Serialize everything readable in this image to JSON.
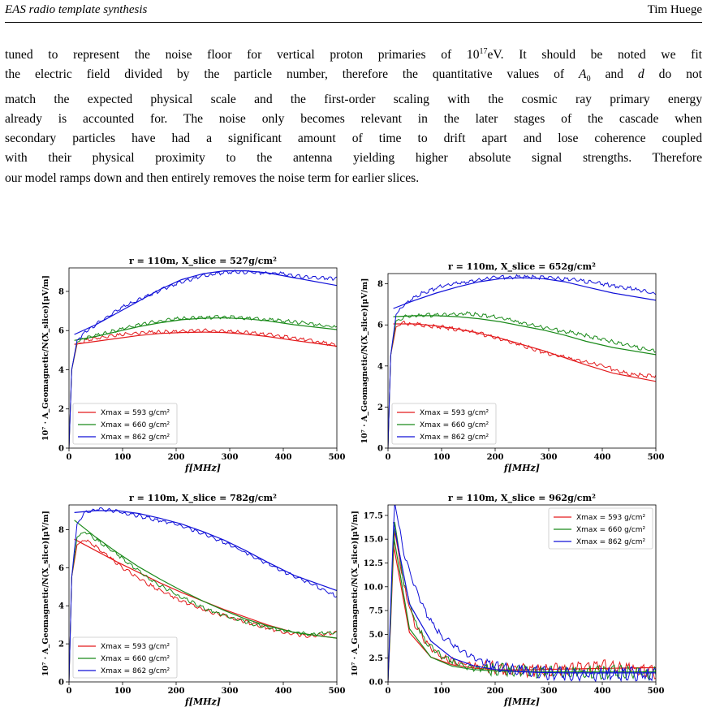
{
  "header": {
    "left": "EAS radio template synthesis",
    "right": "Tim Huege"
  },
  "paragraph": [
    "tuned to represent the noise floor for vertical proton primaries of 10^17eV. It should be noted we fit",
    "the electric field divided by the particle number, therefore the quantitative values of A0 and d do not",
    "match the expected physical scale and the first-order scaling with the cosmic ray primary energy",
    "already is accounted for. The noise only becomes relevant in the later stages of the cascade when",
    "secondary particles have had a significant amount of time to drift apart and lose coherence coupled",
    "with their physical proximity to the antenna yielding higher absolute signal strengths. Therefore",
    "our model ramps down and then entirely removes the noise term for earlier slices."
  ],
  "colors": {
    "red": "#e31a1c",
    "green": "#1a8a1a",
    "blue": "#1010d8"
  },
  "chart_data": [
    {
      "type": "line",
      "title": "r = 110m, X_slice = 527g/cm²",
      "xlabel": "f[MHz]",
      "ylabel": "10⁷ · A_Geomagnetic/N(X_slice)[μV/m]",
      "xlim": [
        0,
        500
      ],
      "ylim": [
        0,
        9.2
      ],
      "xticks": [
        0,
        100,
        200,
        300,
        400,
        500
      ],
      "yticks": [
        0,
        2,
        4,
        6,
        8
      ],
      "legend": "lower-left",
      "series": [
        {
          "name": "Xmax = 593 g/cm²",
          "color": "red",
          "x": [
            0,
            5,
            15,
            30,
            60,
            100,
            150,
            200,
            250,
            300,
            350,
            400,
            450,
            500
          ],
          "y": [
            0,
            4.0,
            5.3,
            5.5,
            5.65,
            5.8,
            5.9,
            5.95,
            6.0,
            5.95,
            5.85,
            5.7,
            5.5,
            5.25
          ],
          "fit": [
            5.3,
            5.45,
            5.6,
            5.75,
            5.85,
            5.9,
            5.92,
            5.9,
            5.82,
            5.7,
            5.5,
            5.2
          ]
        },
        {
          "name": "Xmax = 660 g/cm²",
          "color": "green",
          "x": [
            0,
            5,
            15,
            30,
            60,
            100,
            150,
            200,
            250,
            300,
            350,
            400,
            450,
            500
          ],
          "y": [
            0,
            4.0,
            5.4,
            5.6,
            5.8,
            6.1,
            6.4,
            6.6,
            6.65,
            6.7,
            6.6,
            6.5,
            6.35,
            6.15
          ],
          "fit": [
            5.5,
            5.7,
            5.95,
            6.2,
            6.4,
            6.55,
            6.63,
            6.65,
            6.6,
            6.5,
            6.3,
            6.05
          ]
        },
        {
          "name": "Xmax = 862 g/cm²",
          "color": "blue",
          "x": [
            0,
            5,
            15,
            30,
            60,
            100,
            150,
            200,
            250,
            300,
            350,
            400,
            450,
            500
          ],
          "y": [
            0,
            4.0,
            5.5,
            5.9,
            6.5,
            7.2,
            7.8,
            8.4,
            8.8,
            9.0,
            8.95,
            8.9,
            8.7,
            8.65
          ],
          "fit": [
            5.8,
            6.3,
            6.9,
            7.5,
            8.1,
            8.6,
            8.9,
            9.05,
            9.05,
            8.95,
            8.7,
            8.3
          ]
        }
      ]
    },
    {
      "type": "line",
      "title": "r = 110m, X_slice = 652g/cm²",
      "xlabel": "f[MHz]",
      "ylabel": "10⁷ · A_Geomagnetic/N(X_slice)[μV/m]",
      "xlim": [
        0,
        500
      ],
      "ylim": [
        0,
        8.5
      ],
      "xticks": [
        0,
        100,
        200,
        300,
        400,
        500
      ],
      "yticks": [
        0,
        2,
        4,
        6,
        8
      ],
      "legend": "lower-left",
      "series": [
        {
          "name": "Xmax = 593 g/cm²",
          "color": "red",
          "x": [
            0,
            5,
            15,
            30,
            60,
            100,
            150,
            200,
            250,
            300,
            350,
            400,
            450,
            500
          ],
          "y": [
            0,
            4.5,
            5.9,
            6.1,
            6.0,
            5.9,
            5.7,
            5.4,
            5.0,
            4.6,
            4.3,
            4.0,
            3.6,
            3.5
          ],
          "fit": [
            6.05,
            6.05,
            5.95,
            5.8,
            5.6,
            5.35,
            5.05,
            4.75,
            4.4,
            4.05,
            3.65,
            3.25
          ]
        },
        {
          "name": "Xmax = 660 g/cm²",
          "color": "green",
          "x": [
            0,
            5,
            15,
            30,
            60,
            100,
            150,
            200,
            250,
            300,
            350,
            400,
            450,
            500
          ],
          "y": [
            0,
            4.5,
            6.2,
            6.4,
            6.45,
            6.5,
            6.55,
            6.4,
            6.1,
            5.8,
            5.6,
            5.3,
            5.0,
            4.7
          ],
          "fit": [
            6.4,
            6.45,
            6.45,
            6.4,
            6.3,
            6.15,
            5.95,
            5.75,
            5.5,
            5.2,
            4.9,
            4.55
          ]
        },
        {
          "name": "Xmax = 862 g/cm²",
          "color": "blue",
          "x": [
            0,
            5,
            15,
            30,
            60,
            100,
            150,
            200,
            250,
            300,
            350,
            400,
            450,
            500
          ],
          "y": [
            0,
            4.5,
            6.5,
            7.0,
            7.5,
            7.9,
            8.1,
            8.3,
            8.35,
            8.3,
            8.2,
            8.0,
            7.8,
            7.5
          ],
          "fit": [
            6.8,
            7.2,
            7.55,
            7.85,
            8.1,
            8.25,
            8.3,
            8.25,
            8.1,
            7.85,
            7.55,
            7.2
          ]
        }
      ]
    },
    {
      "type": "line",
      "title": "r = 110m, X_slice = 782g/cm²",
      "xlabel": "f[MHz]",
      "ylabel": "10⁷ · A_Geomagnetic/N(X_slice)[μV/m]",
      "xlim": [
        0,
        500
      ],
      "ylim": [
        0,
        9.3
      ],
      "xticks": [
        0,
        100,
        200,
        300,
        400,
        500
      ],
      "yticks": [
        0,
        2,
        4,
        6,
        8
      ],
      "legend": "lower-left",
      "series": [
        {
          "name": "Xmax = 593 g/cm²",
          "color": "red",
          "x": [
            0,
            5,
            15,
            30,
            60,
            100,
            150,
            200,
            250,
            300,
            350,
            400,
            450,
            500
          ],
          "y": [
            0,
            5.5,
            7.2,
            7.5,
            6.9,
            6.0,
            5.1,
            4.4,
            3.8,
            3.4,
            3.0,
            2.6,
            2.4,
            2.6
          ],
          "fit": [
            7.5,
            6.9,
            6.3,
            5.75,
            5.2,
            4.7,
            4.25,
            3.8,
            3.4,
            3.0,
            2.6,
            2.3
          ]
        },
        {
          "name": "Xmax = 660 g/cm²",
          "color": "green",
          "x": [
            0,
            5,
            15,
            30,
            60,
            100,
            150,
            200,
            250,
            300,
            350,
            400,
            450,
            500
          ],
          "y": [
            0,
            5.5,
            7.6,
            7.9,
            7.3,
            6.5,
            5.4,
            4.6,
            3.9,
            3.4,
            3.0,
            2.7,
            2.5,
            2.6
          ],
          "fit": [
            8.5,
            7.6,
            6.8,
            6.05,
            5.4,
            4.8,
            4.25,
            3.75,
            3.3,
            2.95,
            2.6,
            2.3
          ]
        },
        {
          "name": "Xmax = 862 g/cm²",
          "color": "blue",
          "x": [
            0,
            5,
            15,
            30,
            60,
            100,
            150,
            200,
            250,
            300,
            350,
            400,
            450,
            500
          ],
          "y": [
            0,
            5.5,
            8.3,
            8.9,
            9.1,
            8.9,
            8.6,
            8.3,
            7.8,
            7.2,
            6.5,
            5.8,
            5.2,
            4.5
          ],
          "fit": [
            8.9,
            9.0,
            9.0,
            8.85,
            8.6,
            8.3,
            7.9,
            7.45,
            6.9,
            6.3,
            5.6,
            4.8
          ]
        }
      ]
    },
    {
      "type": "line",
      "title": "r = 110m, X_slice = 962g/cm²",
      "xlabel": "f[MHz]",
      "ylabel": "10⁷ · A_Geomagnetic/N(X_slice)[μV/m]",
      "xlim": [
        0,
        500
      ],
      "ylim": [
        0,
        18.6
      ],
      "xticks": [
        0,
        100,
        200,
        300,
        400,
        500
      ],
      "yticks": [
        0.0,
        2.5,
        5.0,
        7.5,
        10.0,
        12.5,
        15.0,
        17.5
      ],
      "legend": "upper-right",
      "series": [
        {
          "name": "Xmax = 593 g/cm²",
          "color": "red",
          "x": [
            0,
            5,
            12,
            20,
            30,
            50,
            75,
            100,
            150,
            200,
            250,
            300,
            350,
            400,
            450,
            500
          ],
          "y": [
            0,
            6.0,
            16.0,
            13.5,
            10.0,
            6.0,
            3.8,
            2.6,
            1.8,
            1.4,
            1.3,
            1.2,
            1.5,
            1.8,
            1.4,
            1.0
          ],
          "fit": [
            14.5,
            5.2,
            2.6,
            1.8,
            1.45,
            1.3,
            1.25,
            1.3,
            1.35,
            1.4,
            1.45,
            1.5
          ]
        },
        {
          "name": "Xmax = 660 g/cm²",
          "color": "green",
          "x": [
            0,
            5,
            12,
            20,
            30,
            50,
            75,
            100,
            150,
            200,
            250,
            300,
            350,
            400,
            450,
            500
          ],
          "y": [
            0,
            6.5,
            17.0,
            14.0,
            10.5,
            6.3,
            3.9,
            2.7,
            1.5,
            1.3,
            1.2,
            1.1,
            1.0,
            1.0,
            1.1,
            0.9
          ],
          "fit": [
            15.5,
            5.6,
            2.6,
            1.65,
            1.3,
            1.15,
            1.1,
            1.05,
            1.05,
            1.05,
            1.05,
            1.05
          ]
        },
        {
          "name": "Xmax = 862 g/cm²",
          "color": "blue",
          "x": [
            0,
            5,
            12,
            20,
            30,
            50,
            75,
            100,
            150,
            200,
            250,
            300,
            350,
            400,
            450,
            500
          ],
          "y": [
            0,
            8.0,
            19.0,
            16.5,
            13.5,
            10.0,
            6.8,
            4.8,
            2.8,
            1.6,
            1.2,
            0.9,
            0.8,
            0.8,
            0.9,
            0.7
          ],
          "fit": [
            16.8,
            8.2,
            4.3,
            2.5,
            1.7,
            1.3,
            1.1,
            1.0,
            0.95,
            0.95,
            0.95,
            0.95
          ]
        }
      ]
    }
  ]
}
